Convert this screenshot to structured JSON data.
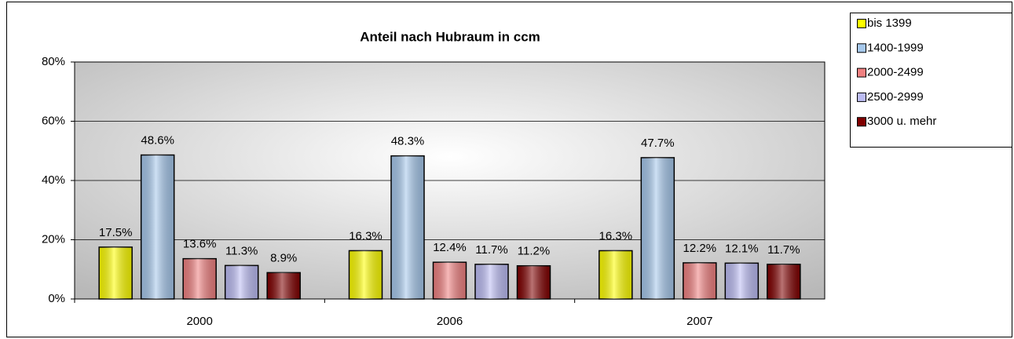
{
  "chart_data": {
    "type": "bar",
    "title": "Anteil nach Hubraum in ccm",
    "categories": [
      "2000",
      "2006",
      "2007"
    ],
    "series": [
      {
        "name": "bis 1399",
        "color": "#ffff00",
        "values": [
          17.5,
          16.3,
          16.3
        ],
        "value_labels": [
          "17.5%",
          "16.3%",
          "16.3%"
        ]
      },
      {
        "name": "1400-1999",
        "color": "#a6c8ec",
        "values": [
          48.6,
          48.3,
          47.7
        ],
        "value_labels": [
          "48.6%",
          "48.3%",
          "47.7%"
        ]
      },
      {
        "name": "2000-2499",
        "color": "#f08080",
        "values": [
          13.6,
          12.4,
          12.2
        ],
        "value_labels": [
          "13.6%",
          "12.4%",
          "12.2%"
        ]
      },
      {
        "name": "2500-2999",
        "color": "#bcbcf4",
        "values": [
          11.3,
          11.7,
          12.1
        ],
        "value_labels": [
          "11.3%",
          "11.7%",
          "12.1%"
        ]
      },
      {
        "name": "3000 u. mehr",
        "color": "#800000",
        "values": [
          8.9,
          11.2,
          11.7
        ],
        "value_labels": [
          "8.9%",
          "11.2%",
          "11.7%"
        ]
      }
    ],
    "ylim": [
      0,
      80
    ],
    "yticks": [
      {
        "value": 0,
        "label": "0%"
      },
      {
        "value": 20,
        "label": "20%"
      },
      {
        "value": 40,
        "label": "40%"
      },
      {
        "value": 60,
        "label": "60%"
      },
      {
        "value": 80,
        "label": "80%"
      }
    ],
    "grid": true,
    "legend": "right"
  }
}
